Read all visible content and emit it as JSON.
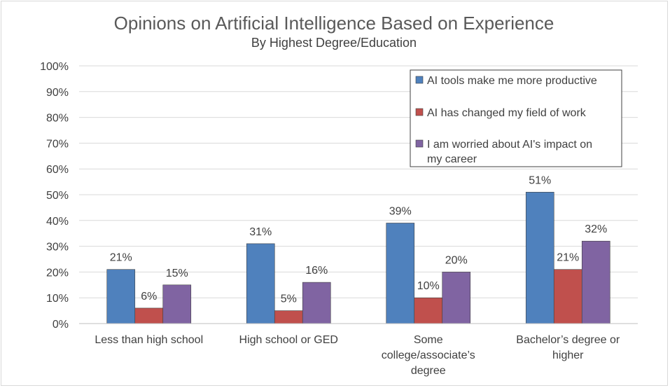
{
  "chart_data": {
    "type": "bar",
    "title": "Opinions on Artificial Intelligence Based on Experience",
    "subtitle": "By Highest Degree/Education",
    "categories": [
      [
        "Less than high school"
      ],
      [
        "High school or GED"
      ],
      [
        "Some",
        "college/associate’s",
        "degree"
      ],
      [
        "Bachelor’s degree or",
        "higher"
      ]
    ],
    "series": [
      {
        "name": "AI tools make me more productive",
        "name_lines": [
          "AI tools make me more productive"
        ],
        "color": "#4f81bd",
        "values": [
          21,
          31,
          39,
          51
        ]
      },
      {
        "name": "AI has changed my field of work",
        "name_lines": [
          "AI has changed my field of work"
        ],
        "color": "#c0504d",
        "values": [
          6,
          5,
          10,
          21
        ]
      },
      {
        "name": "I am worried about AI's impact on my career",
        "name_lines": [
          "I am worried about AI's impact on",
          "my career"
        ],
        "color": "#8064a2",
        "values": [
          15,
          16,
          20,
          32
        ]
      }
    ],
    "data_labels": [
      [
        "21%",
        "31%",
        "39%",
        "51%"
      ],
      [
        "6%",
        "5%",
        "10%",
        "21%"
      ],
      [
        "15%",
        "16%",
        "20%",
        "32%"
      ]
    ],
    "ylim": [
      0,
      100
    ],
    "yticks": [
      "0%",
      "10%",
      "20%",
      "30%",
      "40%",
      "50%",
      "60%",
      "70%",
      "80%",
      "90%",
      "100%"
    ],
    "grid": true,
    "legend_position": "top-right",
    "xlabel": "",
    "ylabel": ""
  }
}
